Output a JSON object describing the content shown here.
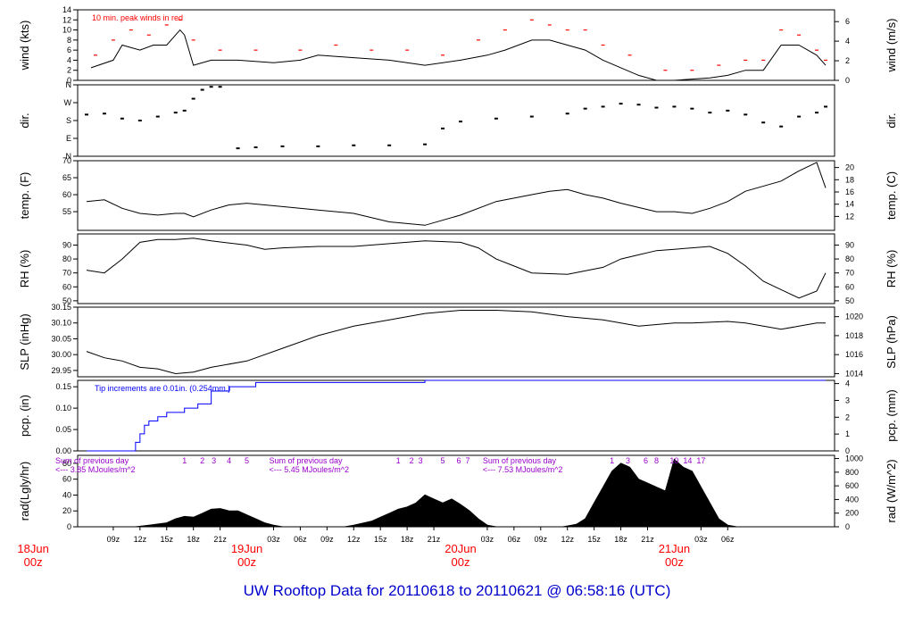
{
  "figure": {
    "title": "UW Rooftop Data for 20110618  to  20110621 @ 06:58:16  (UTC)",
    "colors": {
      "frame": "#000000",
      "peaks": "#ff0000",
      "precip": "#0000ff",
      "annot": "#9900cc",
      "dates": "#ff0000",
      "title": "#0000cc"
    }
  },
  "chart_data": [
    {
      "id": "wind",
      "type": "line",
      "ylabel_left": "wind (kts)",
      "ylabel_right": "wind (m/s)",
      "ylim": [
        0,
        14
      ],
      "yticks": [
        0,
        2,
        4,
        6,
        8,
        10,
        12,
        14
      ],
      "yticks_right": [
        "0",
        "2",
        "4",
        "6"
      ],
      "yticks_right_at": [
        0,
        3.89,
        7.78,
        11.66
      ],
      "annotation": "10 min. peak winds in red",
      "series": [
        {
          "x": [
            6.5,
            9,
            10,
            12,
            13.5,
            15,
            16,
            16.5,
            17,
            18,
            20,
            23,
            27,
            30,
            32,
            36,
            40,
            44,
            48,
            51,
            53,
            56,
            58,
            60,
            62,
            64,
            68,
            70,
            72,
            76,
            78,
            80,
            82,
            84,
            86,
            88,
            89
          ],
          "values": [
            2.5,
            4,
            7,
            6,
            7,
            7,
            9,
            10,
            9,
            3,
            4,
            4,
            3.5,
            4,
            5,
            4.5,
            4,
            3,
            4,
            5,
            6,
            8,
            8,
            7,
            6,
            4,
            1,
            0,
            0,
            0.5,
            1,
            2,
            2,
            7,
            7,
            5,
            3
          ]
        },
        {
          "name": "peak",
          "x": [
            7,
            9,
            11,
            13,
            15,
            16.5,
            18,
            21,
            25,
            30,
            34,
            38,
            42,
            46,
            50,
            53,
            56,
            58,
            60,
            62,
            64,
            67,
            71,
            74,
            77,
            80,
            82,
            84,
            86,
            88,
            89
          ],
          "values": [
            5,
            8,
            10,
            9,
            11,
            12,
            8,
            6,
            6,
            6,
            7,
            6,
            6,
            5,
            8,
            10,
            12,
            11,
            10,
            10,
            7,
            5,
            2,
            2,
            3,
            4,
            4,
            10,
            9,
            6,
            4
          ]
        }
      ]
    },
    {
      "id": "dir",
      "type": "scatter",
      "ylabel_left": "dir.",
      "ylabel_right": "dir.",
      "ylim": [
        0,
        360
      ],
      "yticks": [
        0,
        90,
        180,
        270,
        360
      ],
      "tick_labels": [
        "N",
        "E",
        "S",
        "W",
        "N"
      ],
      "series": [
        {
          "x": [
            6,
            8,
            10,
            12,
            14,
            16,
            17,
            18,
            19,
            20,
            21,
            23,
            25,
            28,
            32,
            36,
            40,
            44,
            46,
            48,
            52,
            56,
            60,
            62,
            64,
            66,
            68,
            70,
            72,
            74,
            76,
            78,
            80,
            82,
            84,
            86,
            88,
            89
          ],
          "values": [
            210,
            215,
            190,
            180,
            200,
            220,
            230,
            290,
            335,
            350,
            350,
            40,
            45,
            50,
            50,
            55,
            55,
            60,
            140,
            175,
            190,
            200,
            215,
            240,
            250,
            265,
            260,
            245,
            250,
            240,
            220,
            230,
            210,
            170,
            150,
            200,
            220,
            250
          ]
        }
      ]
    },
    {
      "id": "temp",
      "type": "line",
      "ylabel_left": "temp. (F)",
      "ylabel_right": "temp. (C)",
      "ylim": [
        49.5,
        70
      ],
      "yticks": [
        55,
        60,
        65,
        70
      ],
      "yticks_right": [
        "12",
        "14",
        "16",
        "18",
        "20"
      ],
      "yticks_right_at": [
        53.6,
        57.2,
        60.8,
        64.4,
        68.0
      ],
      "series": [
        {
          "x": [
            6,
            8,
            10,
            12,
            14,
            16,
            17,
            18,
            20,
            22,
            24,
            26,
            28,
            32,
            36,
            40,
            44,
            48,
            52,
            56,
            58,
            60,
            62,
            64,
            66,
            70,
            72,
            74,
            76,
            78,
            80,
            84,
            86,
            88,
            89
          ],
          "values": [
            58,
            58.5,
            56,
            54.5,
            54,
            54.5,
            54.5,
            53.5,
            55.5,
            57,
            57.5,
            57,
            56.5,
            55.5,
            54.5,
            52,
            51,
            54,
            58,
            60,
            61,
            61.5,
            60,
            59,
            57.5,
            55,
            55,
            54.5,
            56,
            58,
            61,
            64,
            67,
            69.5,
            62
          ]
        }
      ]
    },
    {
      "id": "rh",
      "type": "line",
      "ylabel_left": "RH (%)",
      "ylabel_right": "RH (%)",
      "ylim": [
        48,
        98
      ],
      "yticks": [
        50,
        60,
        70,
        80,
        90
      ],
      "yticks_right": [
        "50",
        "60",
        "70",
        "80",
        "90"
      ],
      "yticks_right_at": [
        50,
        60,
        70,
        80,
        90
      ],
      "series": [
        {
          "x": [
            6,
            8,
            10,
            12,
            14,
            16,
            18,
            20,
            24,
            26,
            28,
            32,
            36,
            40,
            44,
            48,
            50,
            52,
            54,
            56,
            60,
            64,
            66,
            68,
            70,
            72,
            74,
            76,
            78,
            80,
            82,
            84,
            86,
            88,
            89
          ],
          "values": [
            72,
            70,
            80,
            92,
            94,
            94,
            95,
            93,
            90,
            87,
            88,
            89,
            89,
            91,
            93,
            92,
            88,
            80,
            75,
            70,
            69,
            74,
            80,
            83,
            86,
            87,
            88,
            89,
            84,
            75,
            64,
            58,
            52,
            57,
            70
          ]
        }
      ]
    },
    {
      "id": "slp",
      "type": "line",
      "ylabel_left": "SLP (inHg)",
      "ylabel_right": "SLP (hPa)",
      "ylim": [
        29.93,
        30.15
      ],
      "yticks": [
        29.95,
        30.0,
        30.05,
        30.1,
        30.15
      ],
      "tick_labels": [
        "29.95",
        "30.00",
        "30.05",
        "30.10",
        "30.15"
      ],
      "yticks_right": [
        "1014",
        "1016",
        "1018",
        "1020"
      ],
      "yticks_right_at": [
        29.94,
        30.0,
        30.06,
        30.12
      ],
      "series": [
        {
          "x": [
            6,
            8,
            10,
            12,
            14,
            16,
            18,
            20,
            24,
            28,
            32,
            36,
            40,
            44,
            48,
            52,
            56,
            60,
            64,
            68,
            72,
            74,
            78,
            80,
            82,
            84,
            86,
            88,
            89
          ],
          "values": [
            30.01,
            29.99,
            29.98,
            29.96,
            29.955,
            29.94,
            29.945,
            29.96,
            29.98,
            30.02,
            30.06,
            30.09,
            30.11,
            30.13,
            30.14,
            30.14,
            30.135,
            30.12,
            30.11,
            30.09,
            30.1,
            30.1,
            30.105,
            30.1,
            30.09,
            30.08,
            30.09,
            30.1,
            30.1
          ]
        }
      ]
    },
    {
      "id": "pcp",
      "type": "line",
      "ylabel_left": "pcp. (in)",
      "ylabel_right": "pcp. (mm)",
      "ylim": [
        0,
        0.165
      ],
      "yticks": [
        0,
        0.05,
        0.1,
        0.15
      ],
      "tick_labels": [
        "0.00",
        "0.05",
        "0.10",
        "0.15"
      ],
      "yticks_right": [
        "0",
        "1",
        "2",
        "3",
        "4"
      ],
      "yticks_right_at": [
        0,
        0.03937,
        0.07874,
        0.11811,
        0.15748
      ],
      "annotation": "Tip increments are 0.01in. (0.254mm.)",
      "series": [
        {
          "name": "precip",
          "x": [
            6,
            11,
            11.5,
            12,
            12.5,
            13,
            14,
            15,
            17,
            18.5,
            20,
            22,
            25,
            28,
            32,
            36,
            40,
            43,
            44,
            50,
            60,
            70,
            80,
            89
          ],
          "values": [
            0,
            0,
            0.02,
            0.04,
            0.06,
            0.07,
            0.08,
            0.09,
            0.1,
            0.11,
            0.14,
            0.15,
            0.16,
            0.16,
            0.16,
            0.16,
            0.16,
            0.16,
            0.17,
            0.17,
            0.17,
            0.17,
            0.17,
            0.17
          ]
        }
      ]
    },
    {
      "id": "rad",
      "type": "area",
      "ylabel_left": "rad(Lgly/hr)",
      "ylabel_right": "rad (W/m^2)",
      "ylim": [
        0,
        90
      ],
      "yticks": [
        0,
        20,
        40,
        60,
        80
      ],
      "yticks_right": [
        "0",
        "200",
        "400",
        "600",
        "800",
        "1000"
      ],
      "yticks_right_at": [
        0,
        17.2,
        34.4,
        51.6,
        68.8,
        86.0
      ],
      "day_labels": [
        {
          "text": "Sum of previous day",
          "sub": "<--- 3.85 MJoules/m^2",
          "x": 2.5
        },
        {
          "text": "Sum of previous day",
          "sub": "<--- 5.45 MJoules/m^2",
          "x": 26.5
        },
        {
          "text": "Sum of previous day",
          "sub": "<--- 7.53 MJoules/m^2",
          "x": 50.5
        }
      ],
      "hour_markers": [
        {
          "label": "1",
          "x": 17
        },
        {
          "label": "2",
          "x": 19
        },
        {
          "label": "3",
          "x": 20.3
        },
        {
          "label": "4",
          "x": 22
        },
        {
          "label": "5",
          "x": 24
        },
        {
          "label": "1",
          "x": 41
        },
        {
          "label": "2",
          "x": 42.5
        },
        {
          "label": "3",
          "x": 43.5
        },
        {
          "label": "5",
          "x": 46
        },
        {
          "label": "6",
          "x": 47.8
        },
        {
          "label": "7",
          "x": 48.8
        },
        {
          "label": "1",
          "x": 65
        },
        {
          "label": "3",
          "x": 66.8
        },
        {
          "label": "6",
          "x": 68.8
        },
        {
          "label": "8",
          "x": 70
        },
        {
          "label": "10",
          "x": 72
        },
        {
          "label": "14",
          "x": 73.5
        },
        {
          "label": "17",
          "x": 75
        }
      ],
      "series": [
        {
          "x": [
            11.5,
            13,
            15,
            16,
            17,
            18,
            19,
            20,
            21,
            22,
            23,
            24,
            25,
            26,
            27,
            28,
            29,
            35,
            36,
            38,
            39,
            40,
            41,
            42,
            43,
            44,
            45,
            46,
            47,
            48,
            49,
            50,
            51,
            52,
            59.5,
            61,
            62,
            63,
            64,
            65,
            66,
            67,
            68,
            69,
            70,
            71,
            72,
            73,
            74,
            75,
            76,
            77,
            78,
            79
          ],
          "values": [
            0,
            2,
            5,
            10,
            13,
            12,
            17,
            22,
            23,
            20,
            20,
            15,
            10,
            5,
            2,
            0,
            0,
            0,
            2,
            7,
            12,
            17,
            22,
            25,
            30,
            40,
            35,
            30,
            35,
            28,
            20,
            10,
            2,
            0,
            0,
            3,
            10,
            30,
            50,
            70,
            80,
            75,
            60,
            55,
            50,
            45,
            85,
            75,
            70,
            50,
            30,
            10,
            2,
            0
          ]
        }
      ]
    }
  ],
  "x_axis": {
    "xlim": [
      5,
      90
    ],
    "ticks": [
      {
        "label": "09z",
        "x": 9
      },
      {
        "label": "12z",
        "x": 12
      },
      {
        "label": "15z",
        "x": 15
      },
      {
        "label": "18z",
        "x": 18
      },
      {
        "label": "21z",
        "x": 21
      },
      {
        "label": "03z",
        "x": 27
      },
      {
        "label": "06z",
        "x": 30
      },
      {
        "label": "09z",
        "x": 33
      },
      {
        "label": "12z",
        "x": 36
      },
      {
        "label": "15z",
        "x": 39
      },
      {
        "label": "18z",
        "x": 42
      },
      {
        "label": "21z",
        "x": 45
      },
      {
        "label": "03z",
        "x": 51
      },
      {
        "label": "06z",
        "x": 54
      },
      {
        "label": "09z",
        "x": 57
      },
      {
        "label": "12z",
        "x": 60
      },
      {
        "label": "15z",
        "x": 63
      },
      {
        "label": "18z",
        "x": 66
      },
      {
        "label": "21z",
        "x": 69
      },
      {
        "label": "03z",
        "x": 75
      },
      {
        "label": "06z",
        "x": 78
      }
    ],
    "dates": [
      {
        "line1": "18Jun",
        "line2": "00z",
        "x": 0
      },
      {
        "line1": "19Jun",
        "line2": "00z",
        "x": 24
      },
      {
        "line1": "20Jun",
        "line2": "00z",
        "x": 48
      },
      {
        "line1": "21Jun",
        "line2": "00z",
        "x": 72
      }
    ]
  }
}
